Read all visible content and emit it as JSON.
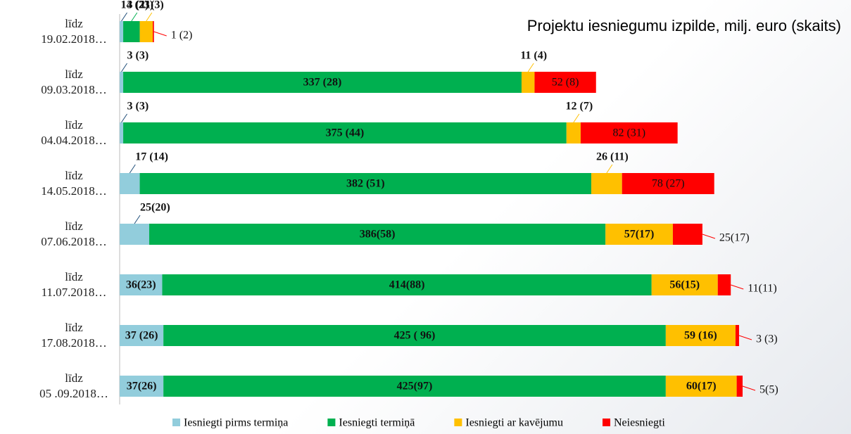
{
  "chart_data": {
    "type": "bar",
    "orientation": "horizontal",
    "stacked": true,
    "title": "Projektu iesniegumu izpilde, milj. euro (skaits)",
    "categories": [
      "līdz\n19.02.2018…",
      "līdz\n09.03.2018…",
      "līdz\n04.04.2018…",
      "līdz\n14.05.2018…",
      "līdz\n07.06.2018…",
      "līdz\n11.07.2018…",
      "līdz\n17.08.2018…",
      "līdz\n05 .09.2018…"
    ],
    "series": [
      {
        "name": "Iesniegti pirms termiņa",
        "color": "#92cddc",
        "values": [
          3,
          3,
          3,
          17,
          25,
          36,
          37,
          37
        ],
        "value_labels": [
          "3 (2)",
          "3 (3)",
          "3 (3)",
          "17 (14)",
          "25(20)",
          "36(23)",
          "37 (26)",
          "37(26)"
        ]
      },
      {
        "name": "Iesniegti termiņā",
        "color": "#00b050",
        "values": [
          14,
          337,
          375,
          382,
          386,
          414,
          425,
          425
        ],
        "value_labels": [
          "14 (23)",
          "337 (28)",
          "375 (44)",
          "382 (51)",
          "386(58)",
          "414(88)",
          "425 ( 96)",
          "425(97)"
        ]
      },
      {
        "name": "Iesniegti ar kavējumu",
        "color": "#ffc000",
        "values": [
          11,
          11,
          12,
          26,
          57,
          56,
          59,
          60
        ],
        "value_labels": [
          "11(3)",
          "11 (4)",
          "12 (7)",
          "26 (11)",
          "57(17)",
          "56(15)",
          "59 (16)",
          "60(17)"
        ]
      },
      {
        "name": "Neiesniegti",
        "color": "#ff0000",
        "values": [
          1,
          52,
          82,
          78,
          25,
          11,
          3,
          5
        ],
        "value_labels": [
          "1 (2)",
          "52 (8)",
          "82 (31)",
          "78 (27)",
          "25(17)",
          "11(11)",
          "3 (3)",
          "5(5)"
        ]
      }
    ],
    "legend": "bottom"
  }
}
